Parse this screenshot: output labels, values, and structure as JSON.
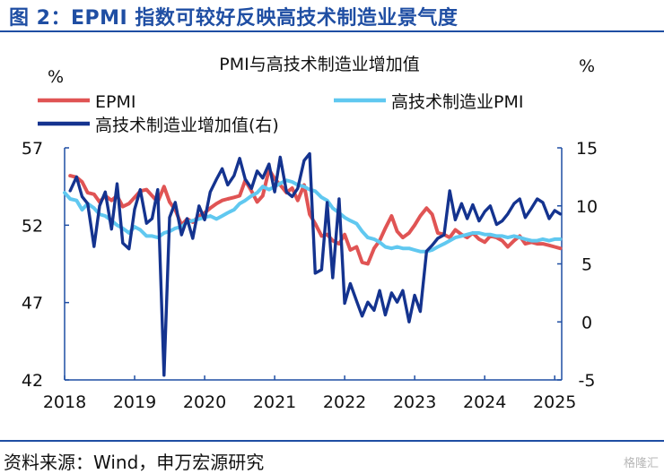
{
  "figure_title": "图 2：EPMI 指数可较好反映高技术制造业景气度",
  "source": "资料来源：Wind，申万宏源研究",
  "watermark": "格隆汇",
  "chart_data": {
    "type": "line",
    "title": "PMI与高技术制造业增加值",
    "left_axis_unit": "%",
    "right_axis_unit": "%",
    "x_range": [
      2018.0,
      2025.1
    ],
    "x_ticks": [
      "2018",
      "2019",
      "2020",
      "2021",
      "2022",
      "2023",
      "2024",
      "2025"
    ],
    "left_ylim": [
      42,
      57
    ],
    "left_ticks": [
      "57",
      "52",
      "47",
      "42"
    ],
    "right_ylim": [
      -5,
      15
    ],
    "right_ticks": [
      "15",
      "10",
      "5",
      "0",
      "-5"
    ],
    "grid": false,
    "legend_position": "top-left",
    "colors": {
      "epmi": "#e05454",
      "pmi": "#60c8f0",
      "iva": "#14338f",
      "axis": "#1f4ea3"
    },
    "series": [
      {
        "name": "EPMI",
        "axis": "left",
        "x": [
          2018.08,
          2018.17,
          2018.25,
          2018.33,
          2018.42,
          2018.5,
          2018.58,
          2018.67,
          2018.75,
          2018.83,
          2018.92,
          2019.0,
          2019.08,
          2019.17,
          2019.25,
          2019.33,
          2019.42,
          2019.5,
          2019.58,
          2019.67,
          2019.75,
          2019.83,
          2019.92,
          2020.0,
          2020.08,
          2020.17,
          2020.25,
          2020.33,
          2020.42,
          2020.5,
          2020.58,
          2020.67,
          2020.75,
          2020.83,
          2020.92,
          2021.0,
          2021.08,
          2021.17,
          2021.25,
          2021.33,
          2021.42,
          2021.5,
          2021.58,
          2021.67,
          2021.75,
          2021.83,
          2021.92,
          2022.0,
          2022.08,
          2022.17,
          2022.25,
          2022.33,
          2022.42,
          2022.5,
          2022.58,
          2022.67,
          2022.75,
          2022.83,
          2022.92,
          2023.0,
          2023.08,
          2023.17,
          2023.25,
          2023.33,
          2023.42,
          2023.5,
          2023.58,
          2023.67,
          2023.75,
          2023.83,
          2023.92,
          2024.0,
          2024.08,
          2024.17,
          2024.25,
          2024.33,
          2024.42,
          2024.5,
          2024.58,
          2024.67,
          2024.75,
          2024.83,
          2024.92,
          2025.0,
          2025.08
        ],
        "values": [
          55.2,
          55.1,
          54.8,
          54.1,
          54.0,
          53.5,
          53.9,
          53.6,
          53.9,
          53.2,
          53.4,
          53.8,
          54.2,
          54.3,
          53.9,
          53.5,
          54.5,
          53.5,
          53.0,
          52.0,
          52.4,
          52.2,
          52.6,
          52.8,
          53.1,
          53.4,
          53.6,
          53.7,
          53.8,
          53.9,
          54.9,
          54.2,
          53.5,
          53.9,
          55.6,
          55.0,
          54.6,
          54.1,
          54.4,
          53.6,
          54.6,
          52.7,
          52.1,
          51.3,
          51.4,
          51.0,
          50.8,
          51.4,
          50.4,
          50.6,
          49.6,
          49.5,
          50.5,
          51.0,
          51.8,
          52.6,
          51.6,
          51.2,
          51.5,
          52.0,
          52.6,
          53.1,
          52.7,
          51.5,
          51.4,
          51.2,
          51.7,
          51.4,
          51.2,
          51.5,
          51.1,
          50.9,
          51.3,
          51.2,
          51.0,
          50.6,
          51.0,
          51.3,
          50.8,
          50.9,
          50.8,
          50.8,
          50.7,
          50.6,
          50.5
        ]
      },
      {
        "name": "高技术制造业PMI",
        "axis": "left",
        "x": [
          2018.0,
          2018.08,
          2018.17,
          2018.25,
          2018.33,
          2018.42,
          2018.5,
          2018.58,
          2018.67,
          2018.75,
          2018.83,
          2018.92,
          2019.0,
          2019.08,
          2019.17,
          2019.25,
          2019.33,
          2019.42,
          2019.5,
          2019.58,
          2019.67,
          2019.75,
          2019.83,
          2019.92,
          2020.0,
          2020.08,
          2020.17,
          2020.25,
          2020.33,
          2020.42,
          2020.5,
          2020.58,
          2020.67,
          2020.75,
          2020.83,
          2020.92,
          2021.0,
          2021.08,
          2021.17,
          2021.25,
          2021.33,
          2021.42,
          2021.5,
          2021.58,
          2021.67,
          2021.75,
          2021.83,
          2021.92,
          2022.0,
          2022.08,
          2022.17,
          2022.25,
          2022.33,
          2022.42,
          2022.5,
          2022.58,
          2022.67,
          2022.75,
          2022.83,
          2022.92,
          2023.0,
          2023.08,
          2023.17,
          2023.25,
          2023.33,
          2023.42,
          2023.5,
          2023.58,
          2023.67,
          2023.75,
          2023.83,
          2023.92,
          2024.0,
          2024.08,
          2024.17,
          2024.25,
          2024.33,
          2024.42,
          2024.5,
          2024.58,
          2024.67,
          2024.75,
          2024.83,
          2024.92,
          2025.0,
          2025.08
        ],
        "values": [
          54.1,
          53.7,
          53.6,
          53.0,
          53.4,
          53.1,
          52.7,
          52.6,
          52.3,
          52.0,
          51.8,
          51.5,
          51.9,
          51.7,
          51.3,
          51.3,
          51.2,
          51.5,
          51.6,
          51.8,
          51.9,
          52.2,
          52.3,
          52.4,
          52.5,
          52.6,
          52.4,
          52.6,
          52.8,
          53.0,
          53.4,
          53.6,
          53.9,
          54.1,
          54.5,
          54.3,
          54.5,
          54.7,
          54.9,
          54.8,
          54.6,
          54.5,
          54.3,
          54.2,
          53.8,
          53.6,
          53.1,
          52.8,
          52.5,
          52.3,
          52.1,
          51.6,
          51.2,
          51.1,
          50.9,
          50.6,
          50.5,
          50.6,
          50.5,
          50.5,
          50.4,
          50.3,
          50.3,
          50.4,
          50.6,
          50.8,
          51.0,
          51.2,
          51.3,
          51.4,
          51.5,
          51.5,
          51.4,
          51.4,
          51.3,
          51.3,
          51.2,
          51.3,
          51.2,
          51.1,
          51.0,
          51.0,
          51.1,
          51.0,
          51.1,
          51.1
        ]
      },
      {
        "name": "高技术制造业增加值(右)",
        "axis": "right",
        "x": [
          2018.08,
          2018.17,
          2018.25,
          2018.33,
          2018.42,
          2018.5,
          2018.58,
          2018.67,
          2018.75,
          2018.83,
          2018.92,
          2019.0,
          2019.08,
          2019.17,
          2019.25,
          2019.33,
          2019.42,
          2019.5,
          2019.58,
          2019.67,
          2019.75,
          2019.83,
          2019.92,
          2020.0,
          2020.08,
          2020.17,
          2020.25,
          2020.33,
          2020.42,
          2020.5,
          2020.58,
          2020.67,
          2020.75,
          2020.83,
          2020.92,
          2021.0,
          2021.08,
          2021.17,
          2021.25,
          2021.33,
          2021.42,
          2021.5,
          2021.58,
          2021.67,
          2021.75,
          2021.83,
          2021.92,
          2022.0,
          2022.08,
          2022.17,
          2022.25,
          2022.33,
          2022.42,
          2022.5,
          2022.58,
          2022.67,
          2022.75,
          2022.83,
          2022.92,
          2023.0,
          2023.08,
          2023.17,
          2023.25,
          2023.33,
          2023.42,
          2023.5,
          2023.58,
          2023.67,
          2023.75,
          2023.83,
          2023.92,
          2024.0,
          2024.08,
          2024.17,
          2024.25,
          2024.33,
          2024.42,
          2024.5,
          2024.58,
          2024.67,
          2024.75,
          2024.83,
          2024.92,
          2025.0,
          2025.08
        ],
        "values": [
          11.3,
          12.5,
          10.8,
          10.2,
          6.5,
          10.0,
          11.2,
          8.0,
          11.9,
          6.8,
          6.3,
          9.7,
          11.4,
          8.5,
          8.9,
          11.4,
          -4.6,
          9.0,
          10.3,
          7.5,
          8.9,
          7.2,
          10.0,
          8.8,
          11.2,
          12.3,
          13.2,
          11.8,
          12.6,
          14.1,
          12.3,
          11.5,
          13.0,
          12.4,
          13.6,
          11.2,
          14.2,
          11.2,
          10.8,
          11.5,
          13.9,
          14.5,
          4.2,
          4.5,
          10.3,
          3.8,
          10.6,
          1.6,
          3.3,
          1.8,
          0.5,
          1.7,
          1.0,
          2.7,
          0.6,
          2.5,
          1.7,
          2.7,
          0.0,
          2.3,
          0.9,
          6.1,
          6.6,
          7.2,
          7.5,
          11.3,
          8.8,
          10.2,
          8.9,
          10.1,
          8.7,
          9.5,
          10.0,
          8.4,
          8.7,
          9.3,
          10.2,
          10.6,
          9.0,
          9.8,
          10.6,
          10.3,
          8.9,
          9.6,
          9.3
        ]
      }
    ]
  }
}
